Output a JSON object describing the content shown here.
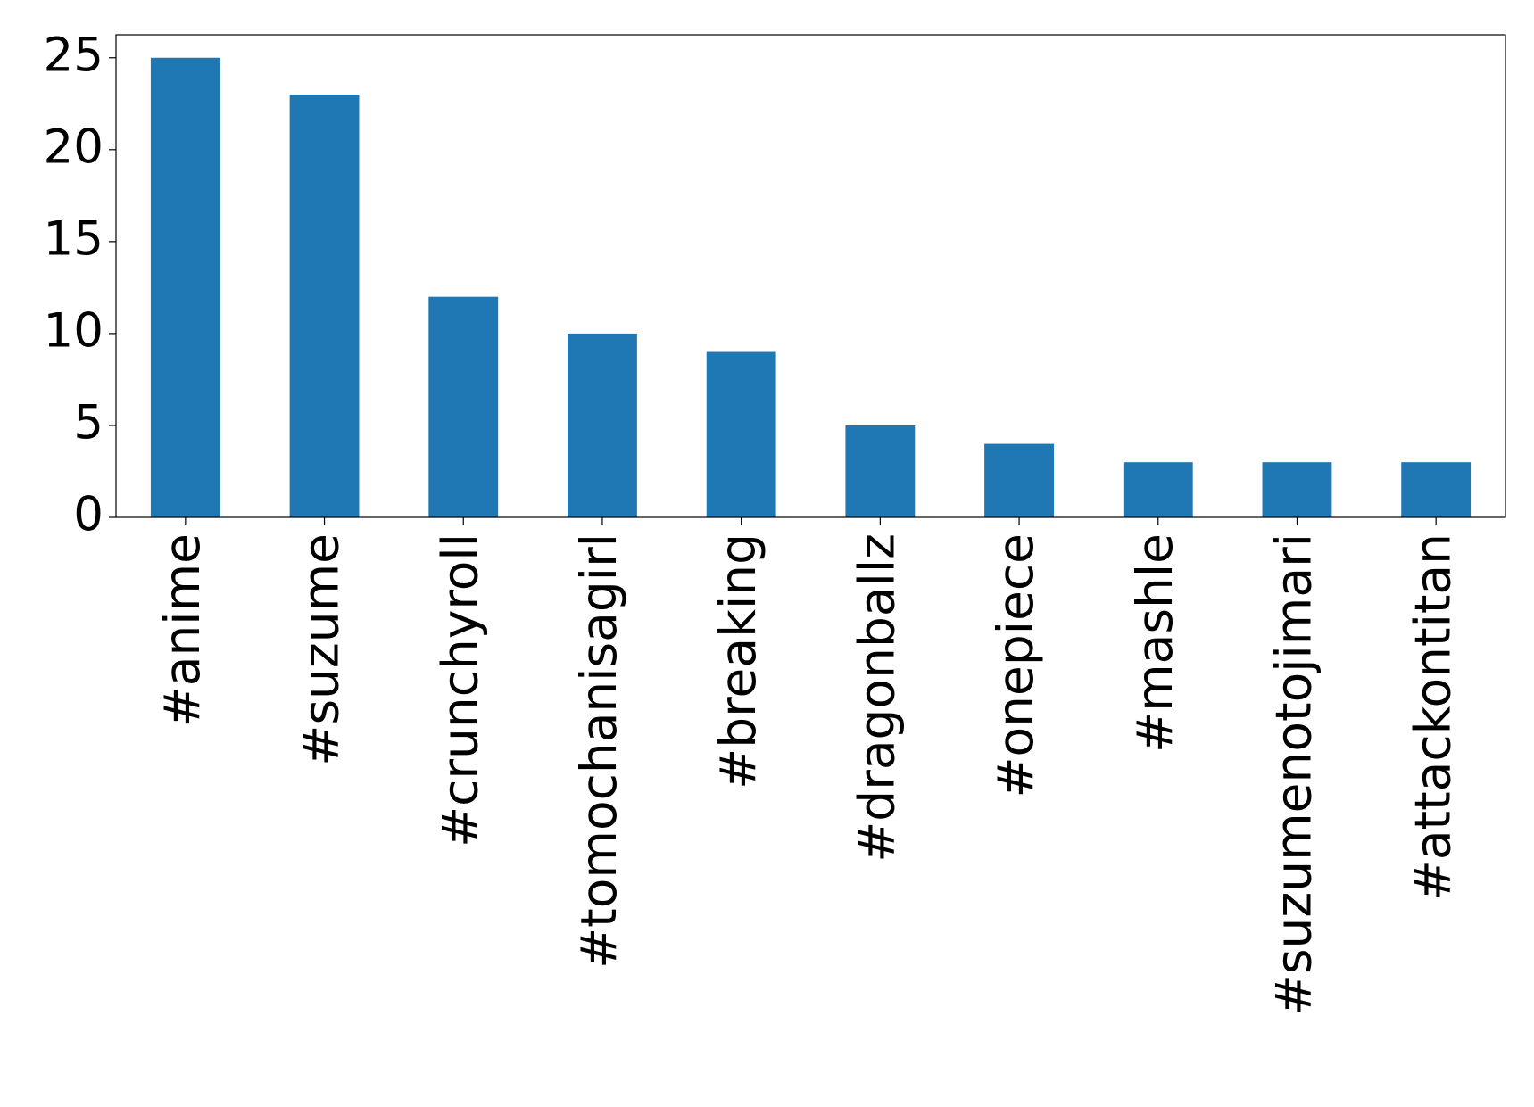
{
  "chart_data": {
    "type": "bar",
    "categories": [
      "#anime",
      "#suzume",
      "#crunchyroll",
      "#tomochanisagirl",
      "#breaking",
      "#dragonballz",
      "#onepiece",
      "#mashle",
      "#suzumenotojimari",
      "#attackontitan"
    ],
    "values": [
      25,
      23,
      12,
      10,
      9,
      5,
      4,
      3,
      3,
      3
    ],
    "color": "#1f77b4",
    "ylim": [
      0,
      26.25
    ],
    "yticks": [
      0,
      5,
      10,
      15,
      20,
      25
    ],
    "grid": false
  }
}
